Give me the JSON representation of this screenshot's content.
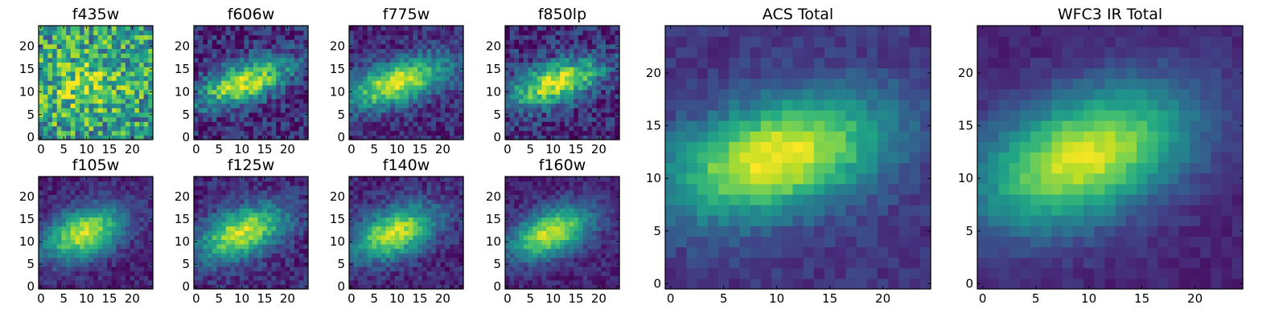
{
  "chart_data": [
    {
      "type": "heatmap",
      "title": "f435w",
      "xlim": [
        0,
        25
      ],
      "ylim": [
        0,
        25
      ],
      "xticks": [
        0,
        5,
        10,
        15,
        20
      ],
      "yticks": [
        0,
        5,
        10,
        15,
        20
      ],
      "colormap": "viridis",
      "center": [
        10,
        12
      ],
      "angle_deg": 18,
      "sigma": [
        6.5,
        4.5
      ],
      "base": 0.55,
      "amp": 0.25,
      "noise": 0.32,
      "seed": 11
    },
    {
      "type": "heatmap",
      "title": "f606w",
      "xlim": [
        0,
        25
      ],
      "ylim": [
        0,
        25
      ],
      "xticks": [
        0,
        5,
        10,
        15,
        20
      ],
      "yticks": [
        0,
        5,
        10,
        15,
        20
      ],
      "colormap": "viridis",
      "center": [
        11,
        12.5
      ],
      "angle_deg": 20,
      "sigma": [
        7.5,
        3.0
      ],
      "base": 0.12,
      "amp": 0.8,
      "noise": 0.18,
      "seed": 22
    },
    {
      "type": "heatmap",
      "title": "f775w",
      "xlim": [
        0,
        25
      ],
      "ylim": [
        0,
        25
      ],
      "xticks": [
        0,
        5,
        10,
        15,
        20
      ],
      "yticks": [
        0,
        5,
        10,
        15,
        20
      ],
      "colormap": "viridis",
      "center": [
        10.5,
        12.5
      ],
      "angle_deg": 18,
      "sigma": [
        8.0,
        3.2
      ],
      "base": 0.12,
      "amp": 0.82,
      "noise": 0.14,
      "seed": 33
    },
    {
      "type": "heatmap",
      "title": "f850lp",
      "xlim": [
        0,
        25
      ],
      "ylim": [
        0,
        25
      ],
      "xticks": [
        0,
        5,
        10,
        15,
        20
      ],
      "yticks": [
        0,
        5,
        10,
        15,
        20
      ],
      "colormap": "viridis",
      "center": [
        11,
        12.5
      ],
      "angle_deg": 18,
      "sigma": [
        7.5,
        3.0
      ],
      "base": 0.12,
      "amp": 0.82,
      "noise": 0.18,
      "seed": 44
    },
    {
      "type": "heatmap",
      "title": "f105w",
      "xlim": [
        0,
        25
      ],
      "ylim": [
        0,
        25
      ],
      "xticks": [
        0,
        5,
        10,
        15,
        20
      ],
      "yticks": [
        0,
        5,
        10,
        15,
        20
      ],
      "colormap": "viridis",
      "center": [
        10,
        12.5
      ],
      "angle_deg": 22,
      "sigma": [
        6.5,
        3.6
      ],
      "base": 0.1,
      "amp": 0.82,
      "noise": 0.1,
      "seed": 55
    },
    {
      "type": "heatmap",
      "title": "f125w",
      "xlim": [
        0,
        25
      ],
      "ylim": [
        0,
        25
      ],
      "xticks": [
        0,
        5,
        10,
        15,
        20
      ],
      "yticks": [
        0,
        5,
        10,
        15,
        20
      ],
      "colormap": "viridis",
      "center": [
        10.5,
        12.5
      ],
      "angle_deg": 22,
      "sigma": [
        7.0,
        3.6
      ],
      "base": 0.12,
      "amp": 0.8,
      "noise": 0.12,
      "seed": 66
    },
    {
      "type": "heatmap",
      "title": "f140w",
      "xlim": [
        0,
        25
      ],
      "ylim": [
        0,
        25
      ],
      "xticks": [
        0,
        5,
        10,
        15,
        20
      ],
      "yticks": [
        0,
        5,
        10,
        15,
        20
      ],
      "colormap": "viridis",
      "center": [
        10,
        12.5
      ],
      "angle_deg": 22,
      "sigma": [
        6.8,
        3.6
      ],
      "base": 0.1,
      "amp": 0.82,
      "noise": 0.11,
      "seed": 77
    },
    {
      "type": "heatmap",
      "title": "f160w",
      "xlim": [
        0,
        25
      ],
      "ylim": [
        0,
        25
      ],
      "xticks": [
        0,
        5,
        10,
        15,
        20
      ],
      "yticks": [
        0,
        5,
        10,
        15,
        20
      ],
      "colormap": "viridis",
      "center": [
        10,
        12.5
      ],
      "angle_deg": 24,
      "sigma": [
        6.5,
        3.4
      ],
      "base": 0.1,
      "amp": 0.82,
      "noise": 0.09,
      "seed": 88
    },
    {
      "type": "heatmap",
      "title": "ACS Total",
      "xlim": [
        0,
        25
      ],
      "ylim": [
        0,
        25
      ],
      "xticks": [
        0,
        5,
        10,
        15,
        20
      ],
      "yticks": [
        0,
        5,
        10,
        15,
        20
      ],
      "colormap": "viridis",
      "center": [
        10.5,
        12.5
      ],
      "angle_deg": 15,
      "sigma": [
        7.5,
        3.6
      ],
      "base": 0.15,
      "amp": 0.85,
      "noise": 0.07,
      "seed": 99
    },
    {
      "type": "heatmap",
      "title": "WFC3 IR Total",
      "xlim": [
        0,
        25
      ],
      "ylim": [
        0,
        25
      ],
      "xticks": [
        0,
        5,
        10,
        15,
        20
      ],
      "yticks": [
        0,
        5,
        10,
        15,
        20
      ],
      "colormap": "viridis",
      "center": [
        10,
        12.5
      ],
      "angle_deg": 22,
      "sigma": [
        7.5,
        4.0
      ],
      "base": 0.1,
      "amp": 0.85,
      "noise": 0.05,
      "seed": 111
    }
  ]
}
